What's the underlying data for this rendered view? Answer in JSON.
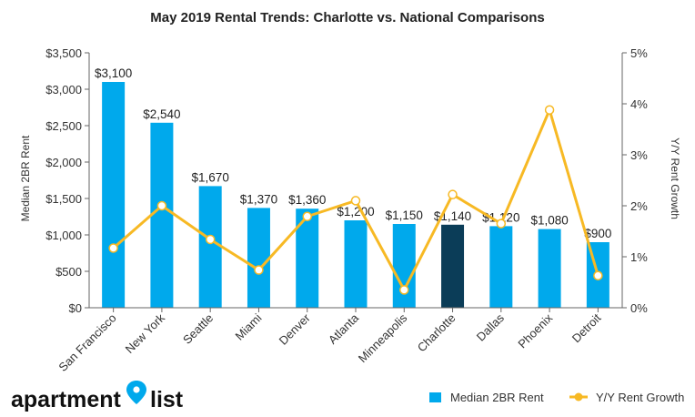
{
  "chart_data": {
    "type": "bar",
    "title": "May 2019 Rental Trends: Charlotte vs. National Comparisons",
    "categories": [
      "San Francisco",
      "New York",
      "Seattle",
      "Miami",
      "Denver",
      "Atlanta",
      "Minneapolis",
      "Charlotte",
      "Dallas",
      "Phoenix",
      "Detroit"
    ],
    "series": [
      {
        "name": "Median 2BR Rent",
        "type": "bar",
        "axis": "left",
        "values": [
          3100,
          2540,
          1670,
          1370,
          1360,
          1200,
          1150,
          1140,
          1120,
          1080,
          900
        ],
        "labels": [
          "$3,100",
          "$2,540",
          "$1,670",
          "$1,370",
          "$1,360",
          "$1,200",
          "$1,150",
          "$1,140",
          "$1,120",
          "$1,080",
          "$900"
        ]
      },
      {
        "name": "Y/Y Rent Growth",
        "type": "line",
        "axis": "right",
        "values": [
          1.17,
          2.0,
          1.34,
          0.74,
          1.79,
          2.1,
          0.35,
          2.22,
          1.65,
          3.88,
          0.63
        ]
      }
    ],
    "highlight_category": "Charlotte",
    "ylabel": "Median 2BR Rent",
    "y2label": "Y/Y Rent Growth",
    "ylim": [
      0,
      3500
    ],
    "y2lim": [
      0,
      5
    ],
    "yticks": [
      "$0",
      "$500",
      "$1,000",
      "$1,500",
      "$2,000",
      "$2,500",
      "$3,000",
      "$3,500"
    ],
    "y2ticks": [
      "0%",
      "1%",
      "2%",
      "3%",
      "4%",
      "5%"
    ],
    "grid": false,
    "legend_position": "bottom-right"
  },
  "colors": {
    "bar": "#00A9EC",
    "bar_highlight": "#0B3D58",
    "line": "#F7B924",
    "axis": "#666666"
  },
  "brand": {
    "logo_text_left": "apartment",
    "logo_text_right": "list",
    "logo_icon": "map-pin-icon"
  },
  "legend": {
    "bar_label": "Median 2BR Rent",
    "line_label": "Y/Y Rent Growth"
  }
}
